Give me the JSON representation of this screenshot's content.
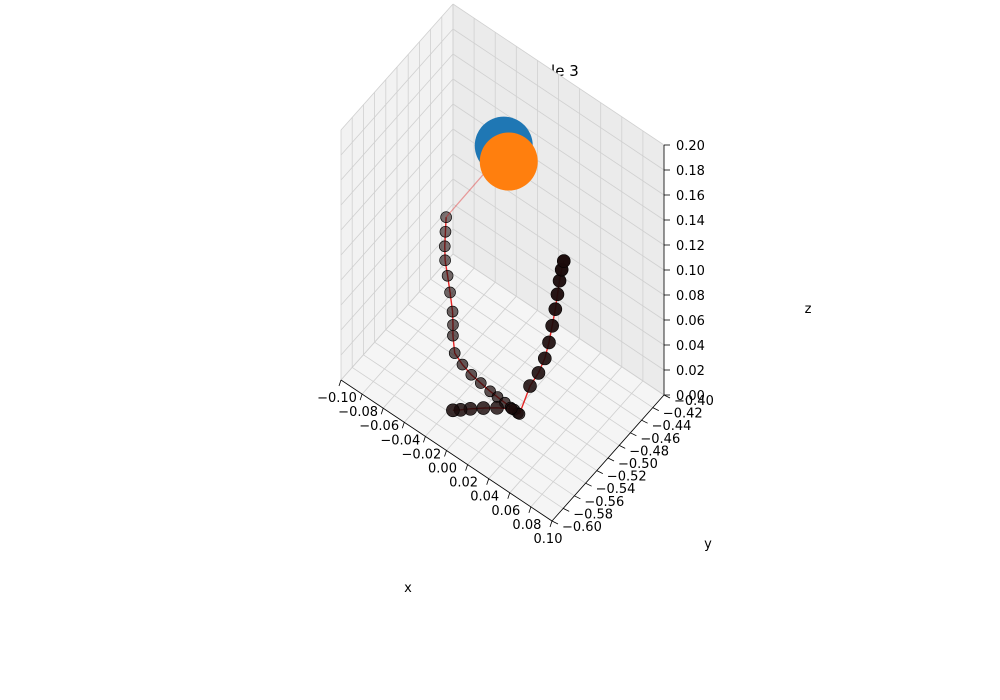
{
  "chart_data": {
    "type": "scatter",
    "projection": "3d",
    "title": "group 0 sample 3",
    "xlabel": "x",
    "ylabel": "y",
    "zlabel": "z",
    "xlim": [
      -0.1,
      0.1
    ],
    "ylim": [
      -0.6,
      -0.4
    ],
    "zlim": [
      0.0,
      0.2
    ],
    "x_ticks": [
      "−0.10",
      "−0.08",
      "−0.06",
      "−0.04",
      "−0.02",
      "0.00",
      "0.02",
      "0.04",
      "0.06",
      "0.08",
      "0.10"
    ],
    "y_ticks": [
      "−0.60",
      "−0.58",
      "−0.56",
      "−0.54",
      "−0.52",
      "−0.50",
      "−0.48",
      "−0.46",
      "−0.44",
      "−0.42",
      "−0.40"
    ],
    "z_ticks": [
      "0.00",
      "0.02",
      "0.04",
      "0.06",
      "0.08",
      "0.10",
      "0.12",
      "0.14",
      "0.16",
      "0.18",
      "0.20"
    ],
    "grid": true,
    "colors": {
      "pane_left": "#f2f2f2",
      "pane_right": "#ebebeb",
      "pane_floor": "#f5f5f5",
      "line": "#e00000",
      "marker": "#1a0a0a",
      "blue": "#1f77b4",
      "orange": "#ff7f0e"
    },
    "series": [
      {
        "marker_style": "dark-circles",
        "points": [
          [
            -0.072,
            -0.465,
            0.078
          ],
          [
            -0.07,
            -0.47,
            0.07
          ],
          [
            -0.068,
            -0.475,
            0.062
          ],
          [
            -0.065,
            -0.48,
            0.055
          ],
          [
            -0.06,
            -0.485,
            0.048
          ],
          [
            -0.055,
            -0.49,
            0.04
          ],
          [
            -0.05,
            -0.495,
            0.03
          ],
          [
            -0.048,
            -0.498,
            0.022
          ],
          [
            -0.047,
            -0.5,
            0.015
          ],
          [
            -0.04,
            -0.51,
            0.01
          ],
          [
            -0.03,
            -0.515,
            0.009
          ],
          [
            -0.02,
            -0.518,
            0.008
          ],
          [
            -0.01,
            -0.52,
            0.008
          ],
          [
            0.0,
            -0.522,
            0.008
          ],
          [
            0.008,
            -0.524,
            0.009
          ],
          [
            0.016,
            -0.526,
            0.01
          ],
          [
            0.022,
            -0.527,
            0.01
          ],
          [
            0.026,
            -0.528,
            0.011
          ],
          [
            0.03,
            -0.529,
            0.011
          ],
          [
            0.032,
            -0.53,
            0.012
          ],
          [
            0.03,
            -0.54,
            0.02
          ],
          [
            0.024,
            -0.555,
            0.025
          ],
          [
            0.018,
            -0.568,
            0.028
          ],
          [
            0.012,
            -0.58,
            0.03
          ],
          [
            0.008,
            -0.59,
            0.032
          ],
          [
            0.005,
            -0.598,
            0.034
          ],
          [
            0.042,
            -0.53,
            0.04
          ],
          [
            0.05,
            -0.53,
            0.055
          ],
          [
            0.056,
            -0.53,
            0.07
          ],
          [
            0.06,
            -0.53,
            0.085
          ],
          [
            0.063,
            -0.53,
            0.1
          ],
          [
            0.066,
            -0.53,
            0.115
          ],
          [
            0.068,
            -0.53,
            0.128
          ],
          [
            0.07,
            -0.53,
            0.14
          ],
          [
            0.072,
            -0.53,
            0.15
          ],
          [
            0.074,
            -0.53,
            0.158
          ]
        ]
      },
      {
        "marker_style": "large-circles",
        "points": [
          [
            -0.028,
            -0.445,
            0.15
          ],
          [
            -0.01,
            -0.47,
            0.16
          ]
        ],
        "colors": [
          "#1f77b4",
          "#ff7f0e"
        ]
      }
    ]
  }
}
